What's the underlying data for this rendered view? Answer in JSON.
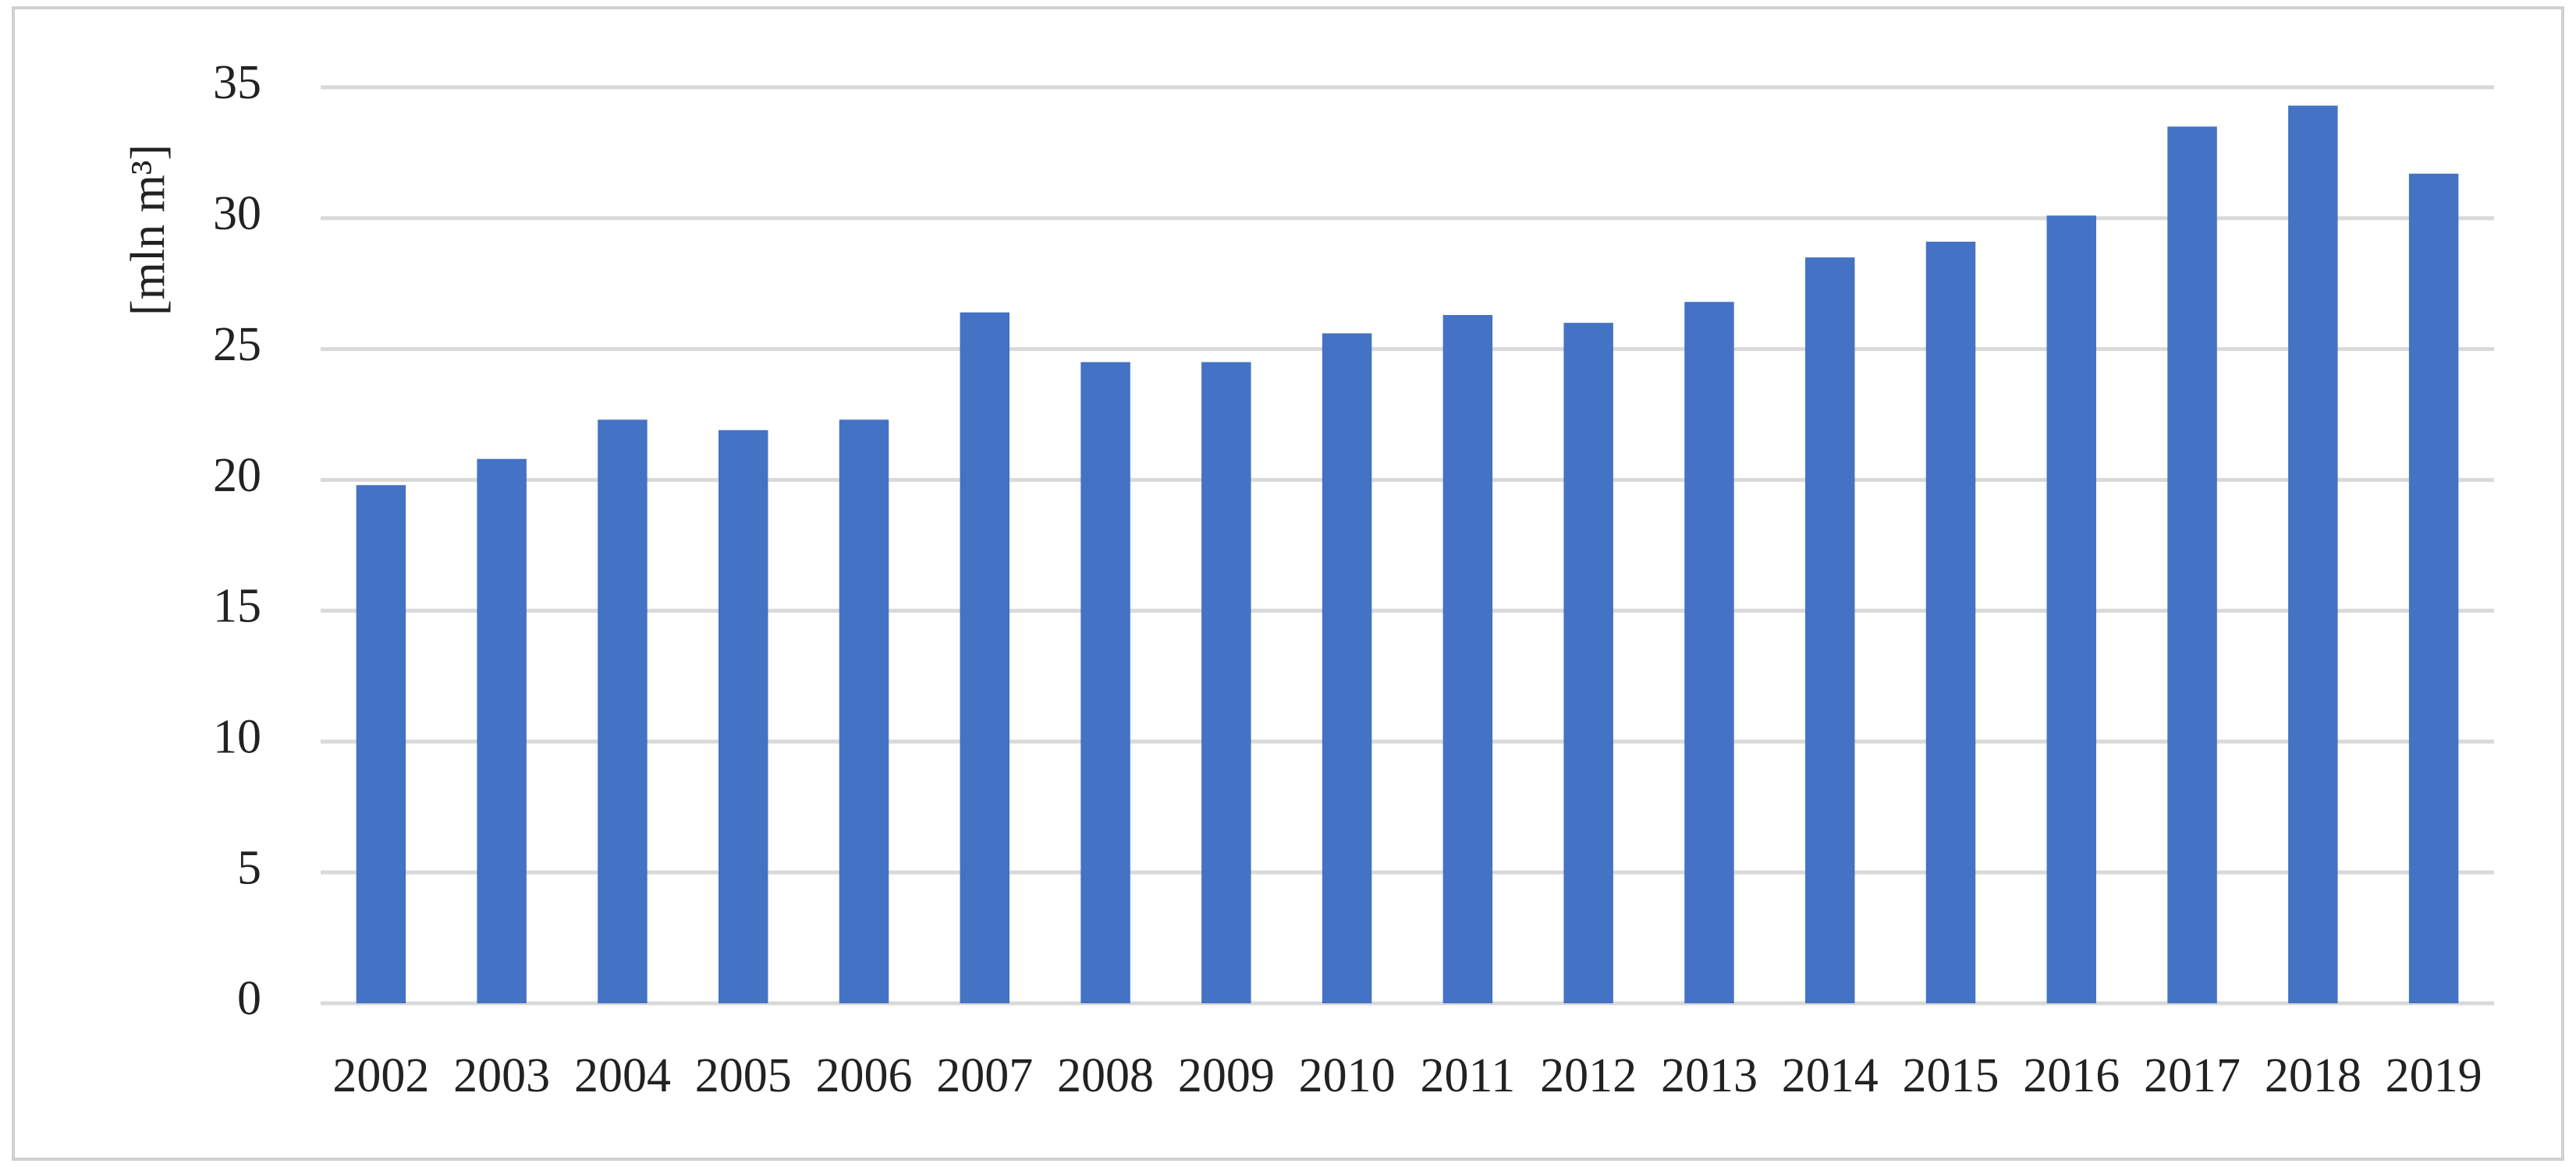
{
  "chart_data": {
    "type": "bar",
    "y_label": "[mln m³]",
    "categories": [
      "2002",
      "2003",
      "2004",
      "2005",
      "2006",
      "2007",
      "2008",
      "2009",
      "2010",
      "2011",
      "2012",
      "2013",
      "2014",
      "2015",
      "2016",
      "2017",
      "2018",
      "2019"
    ],
    "values": [
      19.8,
      20.8,
      22.3,
      21.9,
      22.3,
      26.4,
      24.5,
      24.5,
      25.6,
      26.3,
      26.0,
      26.8,
      28.5,
      29.1,
      30.1,
      33.5,
      34.3,
      31.7
    ],
    "color": "#4472c4",
    "ylim": [
      0,
      35
    ],
    "yticks": [
      0,
      5,
      10,
      15,
      20,
      25,
      30,
      35
    ],
    "grid": true
  }
}
